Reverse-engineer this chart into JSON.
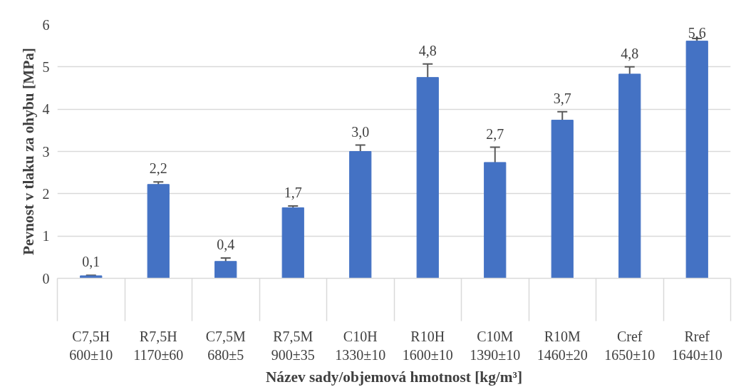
{
  "chart_data": {
    "type": "bar",
    "xlabel": "Název sady/objemová hmotnost [kg/m³]",
    "ylabel": "Pevnost v tlaku za ohybu [MPa]",
    "categories": [
      "C7,5H\n600±10",
      "R7,5H\n1170±60",
      "C7,5M\n680±5",
      "R7,5M\n900±35",
      "C10H\n1330±10",
      "R10H\n1600±10",
      "C10M\n1390±10",
      "R10M\n1460±20",
      "Cref\n1650±10",
      "Rref\n1640±10"
    ],
    "values": [
      0.06,
      2.22,
      0.4,
      1.67,
      3.0,
      4.75,
      2.74,
      3.74,
      4.83,
      5.61
    ],
    "errors": [
      0.01,
      0.06,
      0.08,
      0.04,
      0.15,
      0.32,
      0.36,
      0.2,
      0.17,
      0.06
    ],
    "value_labels": [
      "0,1",
      "2,2",
      "0,4",
      "1,7",
      "3,0",
      "4,8",
      "2,7",
      "3,7",
      "4,8",
      "5,6"
    ],
    "color": "#4472c4",
    "ylim": [
      0,
      6
    ],
    "yticks": [
      0,
      1,
      2,
      3,
      4,
      5,
      6
    ],
    "grid": "y"
  }
}
